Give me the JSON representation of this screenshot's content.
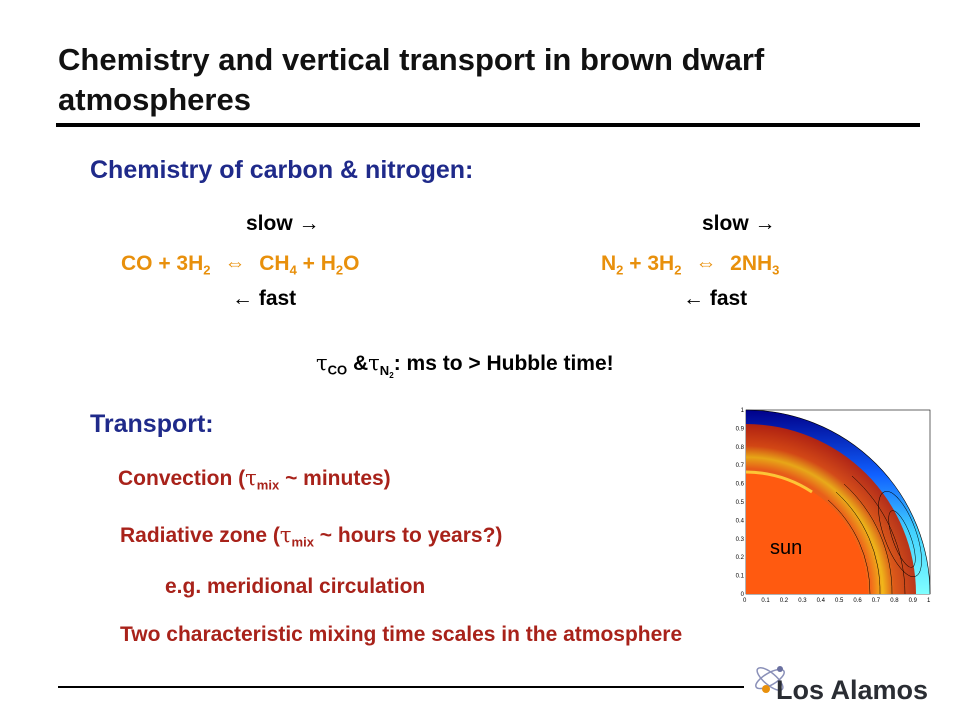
{
  "slide": {
    "title": "Chemistry and vertical transport in brown dwarf atmospheres",
    "chem_heading": "Chemistry of carbon & nitrogen:",
    "reactions": {
      "left": {
        "slow": "slow →",
        "eq": {
          "co": "CO + 3H",
          "co_sub": "2",
          "arrow": "⇔",
          "ch4": "CH",
          "ch4_sub": "4",
          "plus": "+ H",
          "h2o_sub": "2",
          "o": "O"
        },
        "fast": "← fast"
      },
      "right": {
        "slow": "slow →",
        "eq": {
          "n": "N",
          "n_sub": "2",
          "plus": "+ 3H",
          "h_sub": "2",
          "arrow": "⇔",
          "nh": "2NH",
          "nh_sub": "3"
        },
        "fast": "← fast"
      }
    },
    "timescale": {
      "tau": "τ",
      "co": "CO",
      "amp": "&",
      "n": "N",
      "n_sub": "2",
      "rest": ": ms to > Hubble time!"
    },
    "transport_heading": "Transport:",
    "convection": {
      "pre": "Convection (",
      "tau": "τ",
      "sub": "mix",
      "post": " ~ minutes)"
    },
    "radiative": {
      "pre": "Radiative zone (",
      "tau": "τ",
      "sub": "mix",
      "post": " ~ hours to years?)"
    },
    "example": "e.g. meridional circulation",
    "summary": "Two characteristic mixing time scales in the atmosphere",
    "figure": {
      "label": "sun",
      "ticks": [
        "0",
        "0.1",
        "0.2",
        "0.3",
        "0.4",
        "0.5",
        "0.6",
        "0.7",
        "0.8",
        "0.9",
        "1"
      ]
    },
    "logo": "Los Alamos"
  }
}
